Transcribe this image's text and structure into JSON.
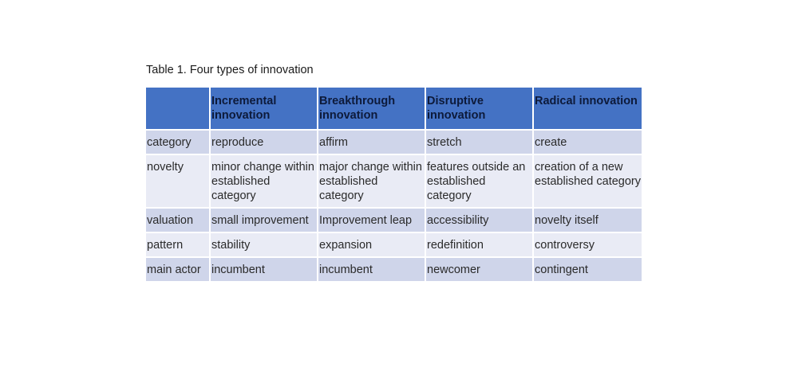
{
  "caption": "Table 1. Four types of innovation",
  "table": {
    "headers": [
      "",
      "Incremental innovation",
      "Breakthrough innovation",
      "Disruptive innovation",
      "Radical innovation"
    ],
    "rows": [
      {
        "label": "category",
        "cells": [
          "reproduce",
          "affirm",
          "stretch",
          "create"
        ]
      },
      {
        "label": "novelty",
        "cells": [
          "minor change within established category",
          "major change within established category",
          "features outside an established category",
          "creation of a new established category"
        ]
      },
      {
        "label": "valuation",
        "cells": [
          "small improvement",
          "Improvement leap",
          "accessibility",
          "novelty itself"
        ]
      },
      {
        "label": "pattern",
        "cells": [
          "stability",
          "expansion",
          "redefinition",
          "controversy"
        ]
      },
      {
        "label": "main actor",
        "cells": [
          "incumbent",
          "incumbent",
          "newcomer",
          "contingent"
        ]
      }
    ]
  },
  "colors": {
    "header_bg": "#4472c4",
    "row_odd_bg": "#cfd5ea",
    "row_even_bg": "#e9ebf5"
  }
}
